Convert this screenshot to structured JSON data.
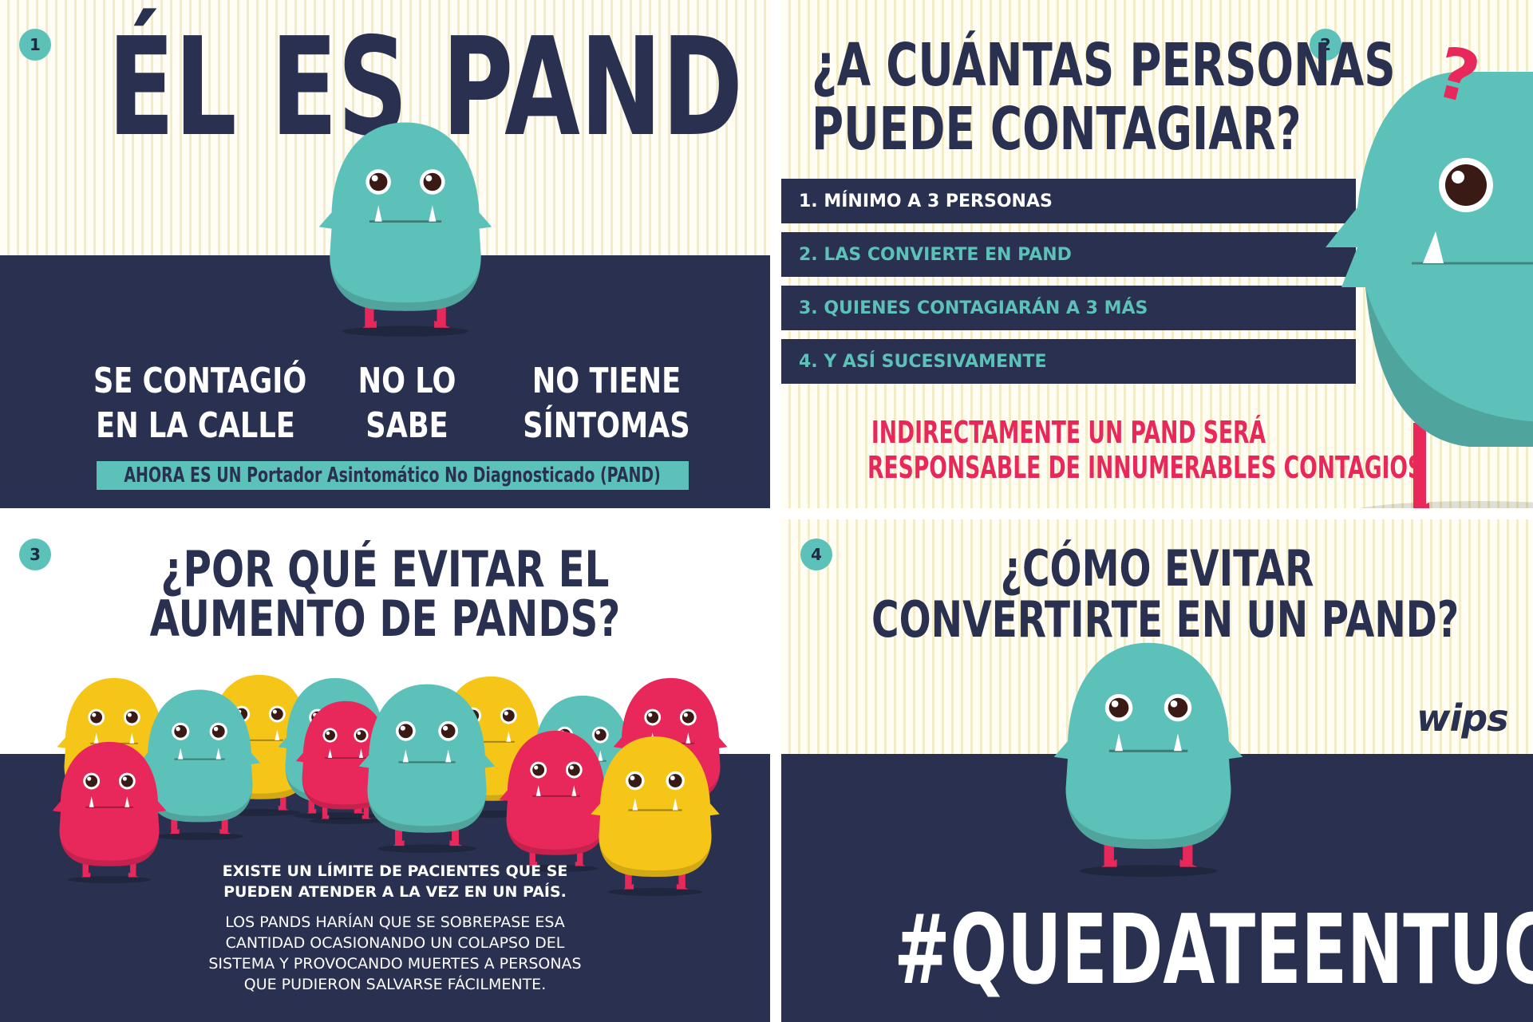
{
  "panel1": {
    "number": "1",
    "title": "ÉL ES PAND",
    "col1_line1": "SE CONTAGIÓ",
    "col1_line2": "EN LA CALLE",
    "col2_line1": "NO LO",
    "col2_line2": "SABE",
    "col3_line1": "NO TIENE",
    "col3_line2": "SÍNTOMAS",
    "banner": "AHORA ES UN Portador Asintomático No Diagnosticado (PAND)"
  },
  "panel2": {
    "number": "2",
    "title_line1": "¿A CUÁNTAS PERSONAS",
    "title_line2": "PUEDE CONTAGIAR?",
    "items": [
      "1. MÍNIMO A 3 PERSONAS",
      "2. LAS CONVIERTE EN PAND",
      "3. QUIENES CONTAGIARÁN A 3 MÁS",
      "4. Y ASÍ SUCESIVAMENTE"
    ],
    "question_mark": "?",
    "footer_line1": "INDIRECTAMENTE UN PAND SERÁ",
    "footer_line2": "RESPONSABLE DE INNUMERABLES CONTAGIOS"
  },
  "panel3": {
    "number": "3",
    "title_line1": "¿POR QUÉ EVITAR EL",
    "title_line2": "AUMENTO DE PANDS?",
    "bold_line1": "EXISTE UN LÍMITE DE PACIENTES QUE SE",
    "bold_line2": "PUEDEN ATENDER A LA VEZ EN UN PAÍS.",
    "body_line1": "LOS PANDS HARÍAN QUE SE SOBREPASE ESA",
    "body_line2": "CANTIDAD OCASIONANDO UN COLAPSO DEL",
    "body_line3": "SISTEMA Y PROVOCANDO MUERTES A PERSONAS",
    "body_line4": "QUE PUDIERON SALVARSE FÁCILMENTE."
  },
  "panel4": {
    "number": "4",
    "title_line1": "¿CÓMO EVITAR",
    "title_line2": "CONVERTIRTE EN UN PAND?",
    "logo": "wips",
    "hashtag": "#QUEDATEENTUCASA"
  },
  "colors": {
    "navy": "#2a3150",
    "teal": "#5cc1b8",
    "pink": "#e8285a",
    "yellow": "#f5c518",
    "cream": "#fffdf4"
  },
  "icons": [
    "pand-monster-icon",
    "question-mark-icon"
  ]
}
